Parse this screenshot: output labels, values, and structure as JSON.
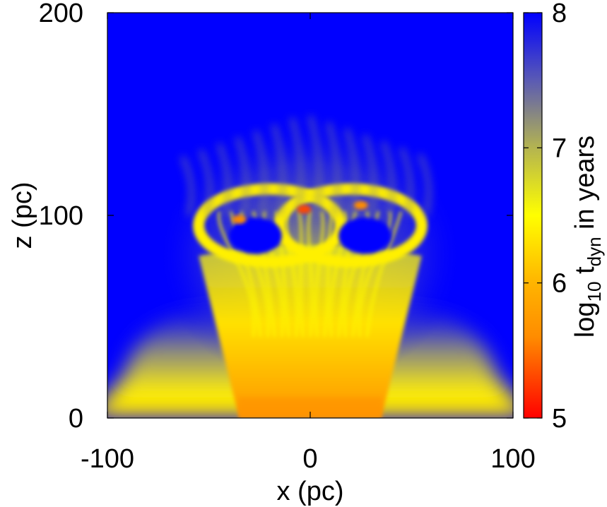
{
  "chart_data": {
    "type": "heatmap",
    "title": "",
    "xlabel": "x (pc)",
    "ylabel": "z (pc)",
    "xlim": [
      -100,
      100
    ],
    "ylim": [
      0,
      200
    ],
    "x_ticks": [
      -100,
      0,
      100
    ],
    "y_ticks": [
      0,
      100,
      200
    ],
    "colorbar": {
      "label_main": "log",
      "label_sub1": "10",
      "label_mid": " t",
      "label_sub2": "dyn",
      "label_tail": " in years",
      "range": [
        5,
        8
      ],
      "ticks": [
        5,
        6,
        7,
        8
      ],
      "colormap": [
        {
          "value": 5.0,
          "color": "#ff0000"
        },
        {
          "value": 5.6,
          "color": "#ff8c00"
        },
        {
          "value": 6.0,
          "color": "#ffb400"
        },
        {
          "value": 6.5,
          "color": "#ffff00"
        },
        {
          "value": 7.0,
          "color": "#b4b450"
        },
        {
          "value": 7.5,
          "color": "#5a5ab4"
        },
        {
          "value": 8.0,
          "color": "#0000ff"
        }
      ]
    },
    "background_value": 8.0,
    "grid": false,
    "features": {
      "base_layer": {
        "x_range": [
          -100,
          100
        ],
        "z_top": 30,
        "base_value": 6.4
      },
      "central_outflow": {
        "x_range_base": [
          -35,
          35
        ],
        "x_range_top": [
          -55,
          55
        ],
        "z_range": [
          0,
          80
        ],
        "value_low": 5.6,
        "value_high": 6.6
      },
      "shell_arcs": [
        {
          "x_center": -20,
          "z_center": 95,
          "x_radius": 35,
          "z_radius": 18,
          "value": 6.4
        },
        {
          "x_center": 20,
          "z_center": 95,
          "x_radius": 35,
          "z_radius": 18,
          "value": 6.4
        }
      ],
      "shell_peaks": [
        {
          "x": -3,
          "z": 103,
          "value": 5.3
        },
        {
          "x": -35,
          "z": 98,
          "value": 5.6
        },
        {
          "x": 25,
          "z": 105,
          "value": 5.6
        }
      ],
      "cavities": [
        {
          "x": -27,
          "z": 90,
          "value": 8.0
        },
        {
          "x": 27,
          "z": 90,
          "value": 8.0
        }
      ],
      "plume_top_z": 150
    }
  }
}
